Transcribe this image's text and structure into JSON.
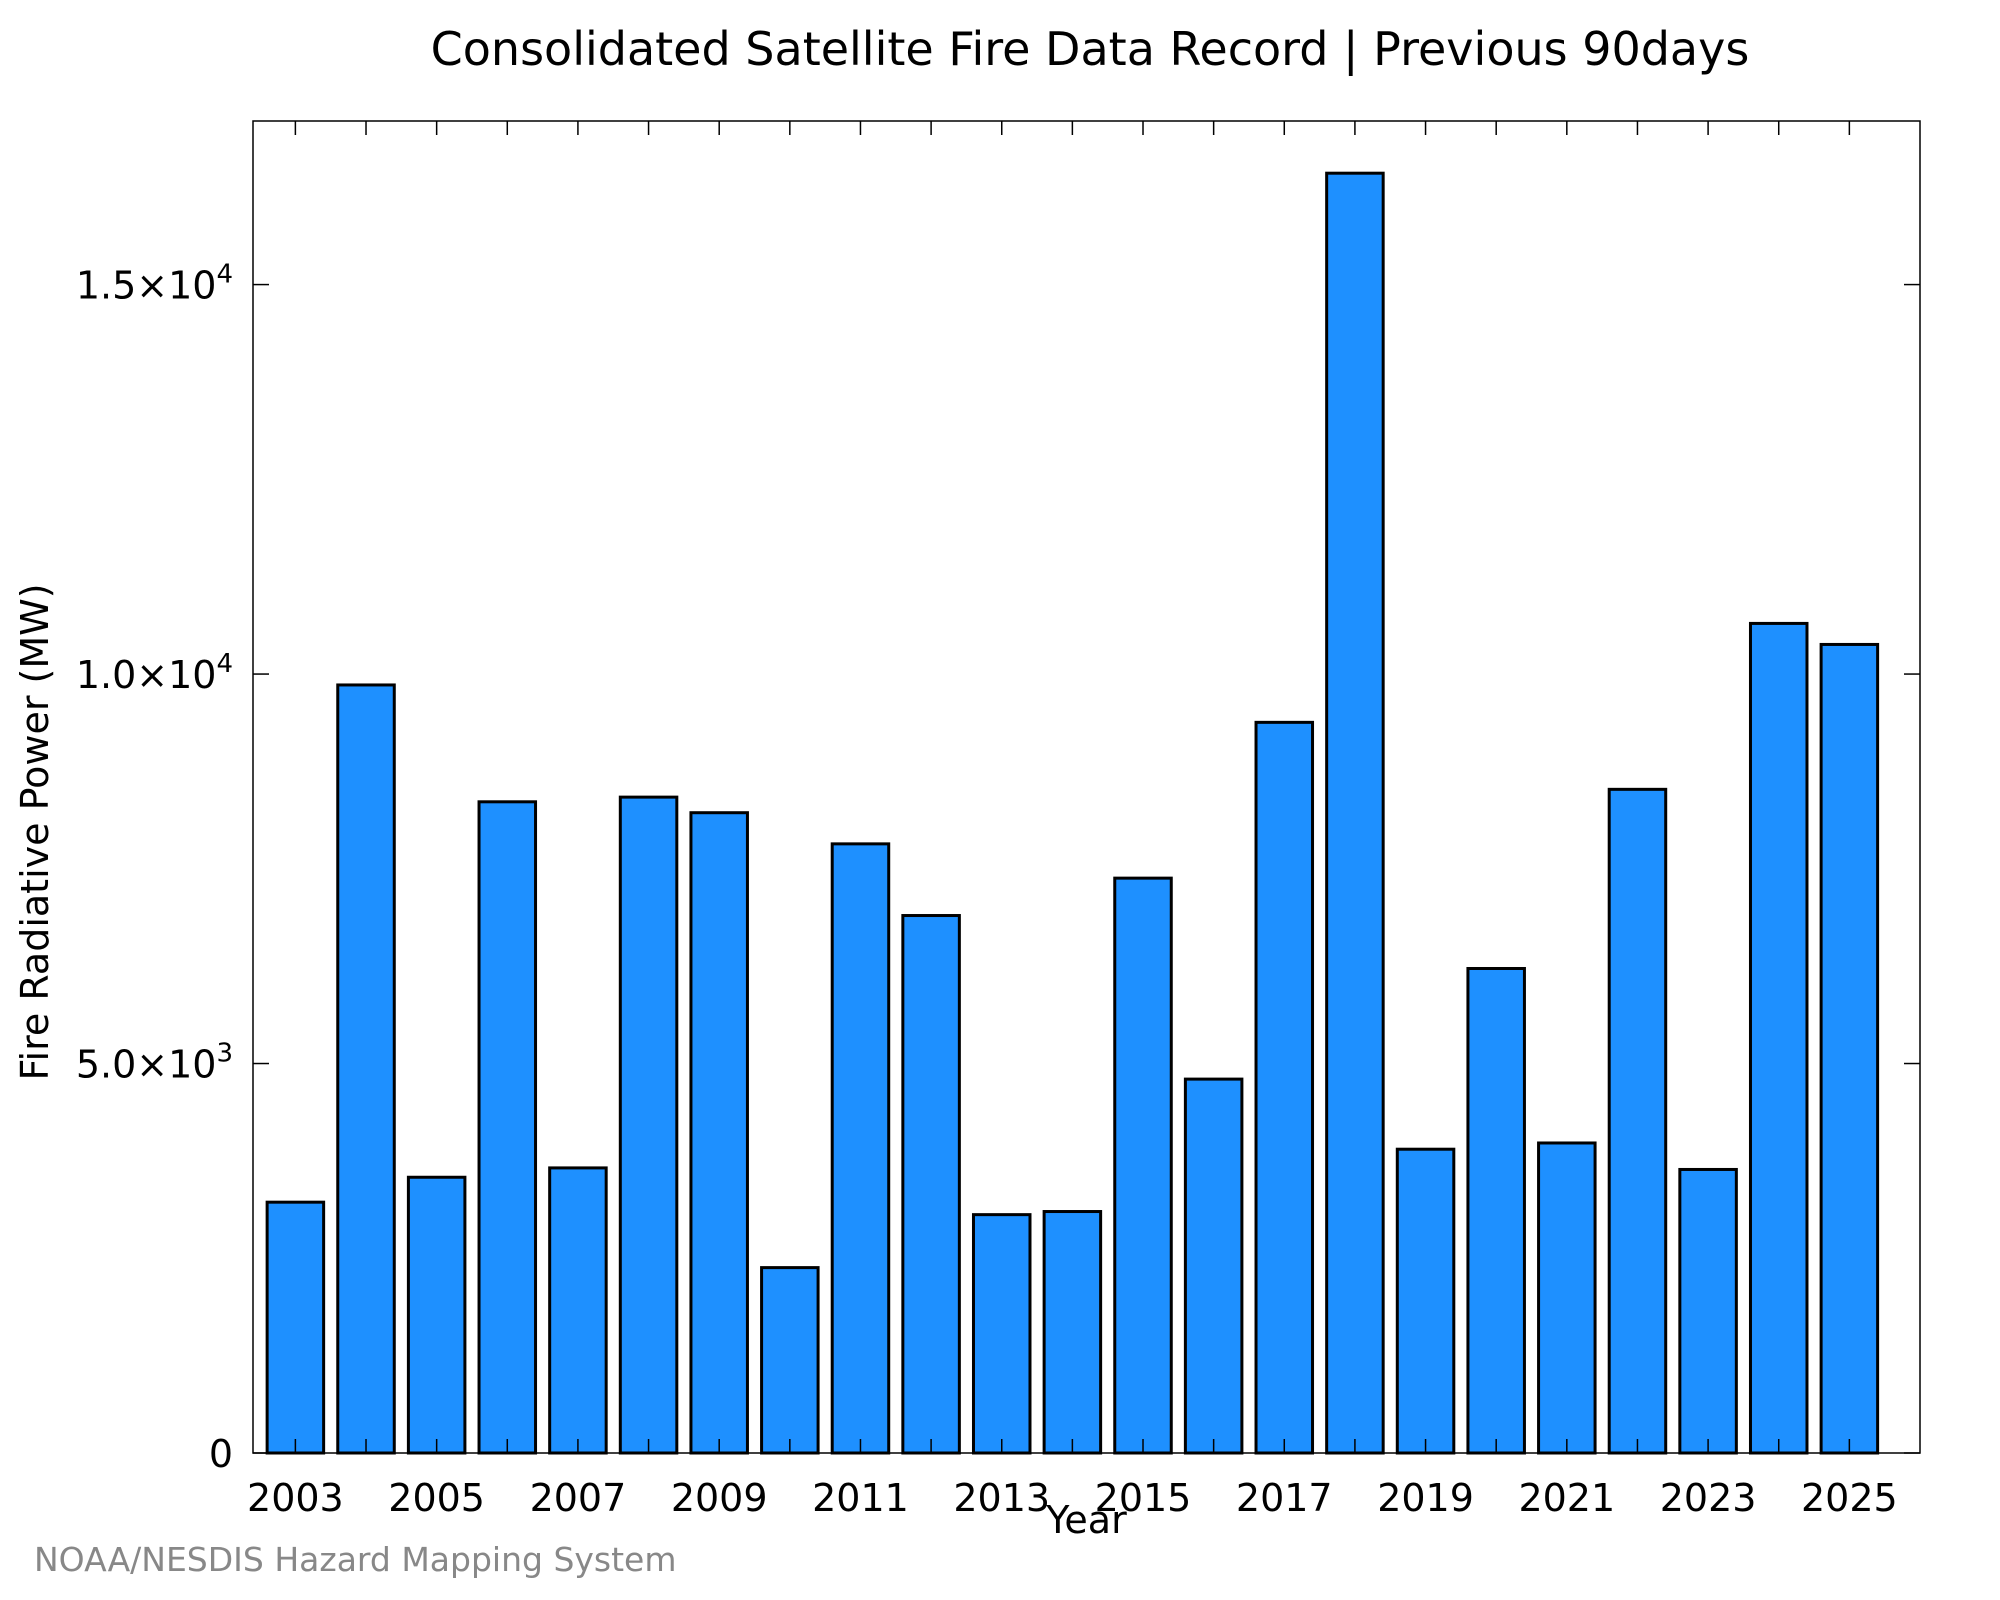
{
  "chart_data": {
    "type": "bar",
    "title": "Consolidated Satellite Fire Data Record | Previous 90days",
    "xlabel": "Year",
    "ylabel": "Fire Radiative Power (MW)",
    "categories": [
      "2003",
      "2004",
      "2005",
      "2006",
      "2007",
      "2008",
      "2009",
      "2010",
      "2011",
      "2012",
      "2013",
      "2014",
      "2015",
      "2016",
      "2017",
      "2018",
      "2019",
      "2020",
      "2021",
      "2022",
      "2023",
      "2024",
      "2025"
    ],
    "values": [
      3220,
      9860,
      3540,
      8360,
      3660,
      8420,
      8220,
      2380,
      7820,
      6900,
      3060,
      3100,
      7380,
      4800,
      9380,
      16430,
      3900,
      6220,
      3980,
      8520,
      3640,
      10650,
      10380
    ],
    "x_tick_labels": [
      "2003",
      "2005",
      "2007",
      "2009",
      "2011",
      "2013",
      "2015",
      "2017",
      "2019",
      "2021",
      "2023",
      "2025"
    ],
    "y_ticks": [
      {
        "value": 0,
        "mantissa": "0",
        "exponent": ""
      },
      {
        "value": 5000,
        "mantissa": "5.0×10",
        "exponent": "3"
      },
      {
        "value": 10000,
        "mantissa": "1.0×10",
        "exponent": "4"
      },
      {
        "value": 15000,
        "mantissa": "1.5×10",
        "exponent": "4"
      }
    ],
    "ylim": [
      0,
      17100
    ],
    "xlim": [
      2002.4,
      2026
    ],
    "bar_color": "#1E90FF",
    "edge_color": "#000000",
    "grid": false,
    "legend": "none"
  },
  "credit": "NOAA/NESDIS Hazard Mapping System"
}
